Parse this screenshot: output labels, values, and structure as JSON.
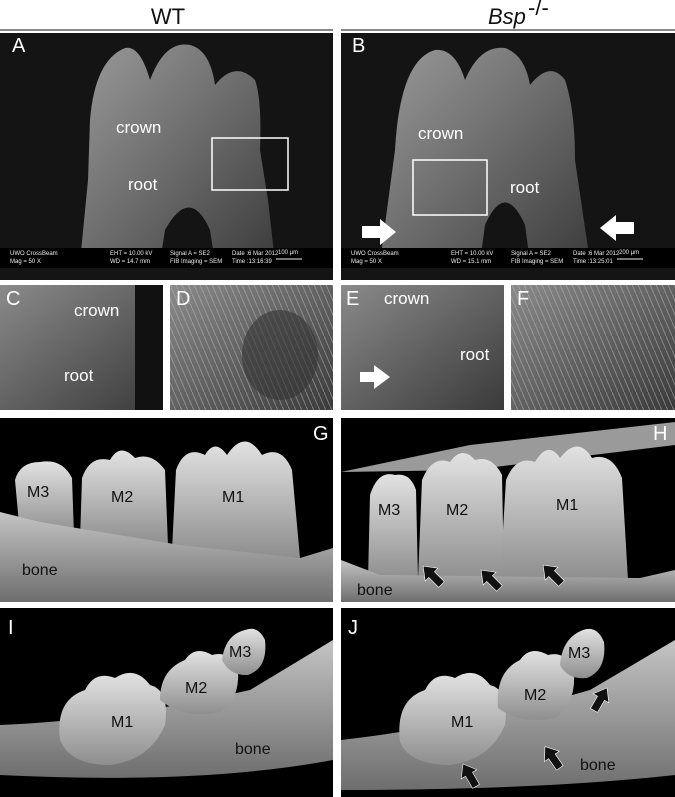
{
  "header": {
    "left": "WT",
    "right": {
      "name": "Bsp",
      "superscript": "-/-"
    }
  },
  "panels": [
    {
      "letter": "A",
      "labels": [
        "crown",
        "root"
      ],
      "info": [
        "UWO CrossBeam",
        "Mag =    50 X",
        "EHT = 10.00 kV",
        "WD = 14.7 mm",
        "Signal A = SE2",
        "FIB Imaging = SEM",
        "Date :6 Mar 2012",
        "Time :13:16:39"
      ],
      "scale": "100 µm"
    },
    {
      "letter": "B",
      "labels": [
        "crown",
        "root"
      ],
      "info": [
        "UWO CrossBeam",
        "Mag =    50 X",
        "EHT = 10.00 kV",
        "WD = 15.1 mm",
        "Signal A = SE2",
        "FIB Imaging = SEM",
        "Date :6 Mar 2012",
        "Time :13:25:01"
      ],
      "scale": "200 µm"
    },
    {
      "letter": "C",
      "labels": [
        "crown",
        "root"
      ]
    },
    {
      "letter": "D"
    },
    {
      "letter": "E",
      "labels": [
        "crown",
        "root"
      ]
    },
    {
      "letter": "F"
    },
    {
      "letter": "G",
      "labels": [
        "M3",
        "M2",
        "M1",
        "bone"
      ]
    },
    {
      "letter": "H",
      "labels": [
        "M3",
        "M2",
        "M1",
        "bone"
      ]
    },
    {
      "letter": "I",
      "labels": [
        "M1",
        "M2",
        "M3",
        "bone"
      ]
    },
    {
      "letter": "J",
      "labels": [
        "M1",
        "M2",
        "M3",
        "bone"
      ]
    }
  ]
}
